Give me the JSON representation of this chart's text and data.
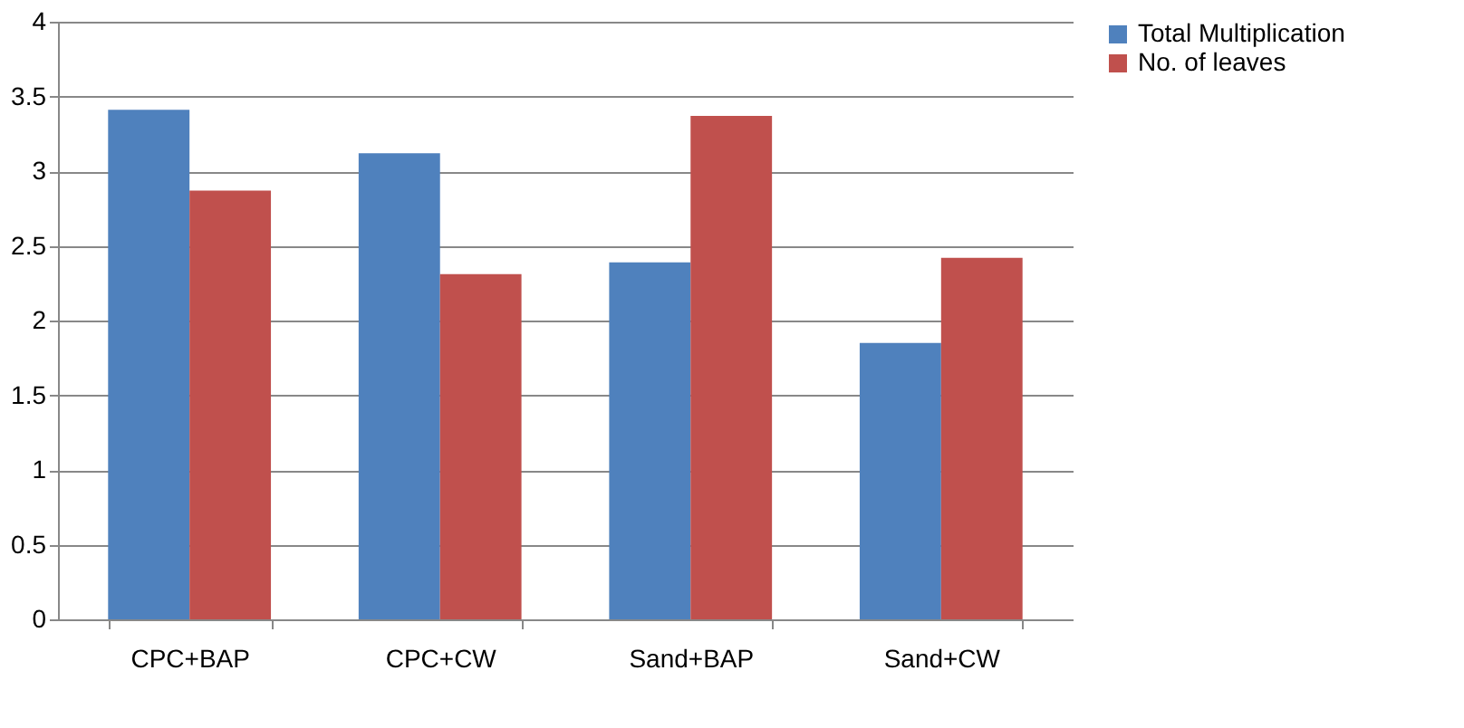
{
  "chart_data": {
    "type": "bar",
    "categories": [
      "CPC+BAP",
      "CPC+CW",
      "Sand+BAP",
      "Sand+CW"
    ],
    "series": [
      {
        "name": "Total Multiplication",
        "color": "#4f81bd",
        "values": [
          3.41,
          3.12,
          2.39,
          1.85
        ]
      },
      {
        "name": "No. of leaves",
        "color": "#c0504d",
        "values": [
          2.87,
          2.31,
          3.37,
          2.42
        ]
      }
    ],
    "ylim": [
      0,
      4
    ],
    "yticks": [
      0,
      0.5,
      1,
      1.5,
      2,
      2.5,
      3,
      3.5,
      4
    ],
    "grid": "y",
    "legend": "right"
  }
}
